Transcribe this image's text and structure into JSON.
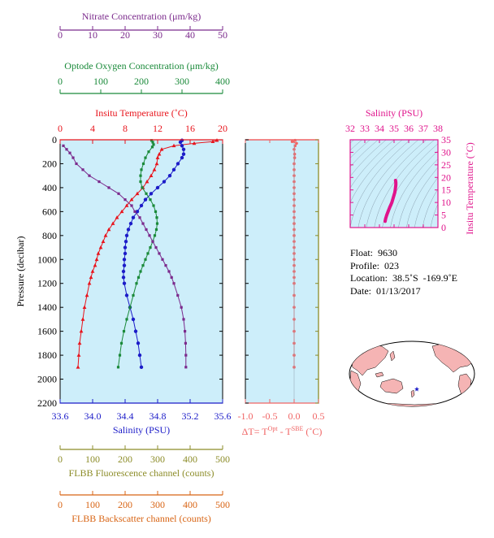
{
  "chart_data": [
    {
      "type": "line",
      "panel": "profile",
      "ylabel": "Pressure (decibar)",
      "ylim": [
        2200,
        0
      ],
      "yticks": [
        "0",
        "200",
        "400",
        "600",
        "800",
        "1000",
        "1200",
        "1400",
        "1600",
        "1800",
        "2000",
        "2200"
      ],
      "axes": {
        "nitrate": {
          "label": "Nitrate Concentration (μm/kg)",
          "range": [
            0,
            50
          ],
          "ticks": [
            "0",
            "10",
            "20",
            "30",
            "40",
            "50"
          ],
          "color": "#7b2a8c"
        },
        "oxygen": {
          "label": "Optode Oxygen Concentration (μm/kg)",
          "range": [
            0,
            400
          ],
          "ticks": [
            "0",
            "100",
            "200",
            "300",
            "400"
          ],
          "color": "#1a8a3a"
        },
        "temperature": {
          "label": "Insitu Temperature (˚C)",
          "range": [
            0,
            20
          ],
          "ticks": [
            "0",
            "4",
            "8",
            "12",
            "16",
            "20"
          ],
          "color": "#e8141c"
        },
        "salinity": {
          "label": "Salinity (PSU)",
          "range": [
            33.6,
            35.6
          ],
          "ticks": [
            "33.6",
            "34.0",
            "34.4",
            "34.8",
            "35.2",
            "35.6"
          ],
          "color": "#1c1cc8"
        },
        "fluorescence": {
          "label": "FLBB Fluorescence channel (counts)",
          "range": [
            0,
            500
          ],
          "ticks": [
            "0",
            "100",
            "200",
            "300",
            "400",
            "500"
          ],
          "color": "#8c8c28"
        },
        "backscatter": {
          "label": "FLBB Backscatter channel (counts)",
          "range": [
            0,
            500
          ],
          "ticks": [
            "0",
            "100",
            "200",
            "300",
            "400",
            "500"
          ],
          "color": "#d86414"
        }
      },
      "series": [
        {
          "key": "temperature",
          "color": "#e8141c",
          "marker": "triangle",
          "points": [
            [
              19.3,
              5
            ],
            [
              18.8,
              15
            ],
            [
              16.5,
              30
            ],
            [
              14.0,
              50
            ],
            [
              12.5,
              80
            ],
            [
              12.2,
              120
            ],
            [
              12.0,
              150
            ],
            [
              11.9,
              200
            ],
            [
              11.6,
              250
            ],
            [
              11.2,
              300
            ],
            [
              10.7,
              350
            ],
            [
              10.2,
              400
            ],
            [
              9.5,
              450
            ],
            [
              8.8,
              500
            ],
            [
              8.2,
              550
            ],
            [
              7.6,
              600
            ],
            [
              7.0,
              650
            ],
            [
              6.5,
              700
            ],
            [
              6.0,
              750
            ],
            [
              5.6,
              800
            ],
            [
              5.3,
              850
            ],
            [
              5.0,
              900
            ],
            [
              4.7,
              950
            ],
            [
              4.5,
              1000
            ],
            [
              4.3,
              1050
            ],
            [
              4.0,
              1100
            ],
            [
              3.8,
              1150
            ],
            [
              3.6,
              1200
            ],
            [
              3.3,
              1300
            ],
            [
              3.0,
              1400
            ],
            [
              2.8,
              1500
            ],
            [
              2.6,
              1600
            ],
            [
              2.4,
              1700
            ],
            [
              2.3,
              1800
            ],
            [
              2.2,
              1900
            ]
          ]
        },
        {
          "key": "salinity",
          "color": "#1c1cc8",
          "marker": "circle",
          "points": [
            [
              35.1,
              5
            ],
            [
              35.08,
              20
            ],
            [
              35.1,
              50
            ],
            [
              35.12,
              80
            ],
            [
              35.12,
              120
            ],
            [
              35.1,
              150
            ],
            [
              35.05,
              200
            ],
            [
              35.0,
              250
            ],
            [
              34.95,
              300
            ],
            [
              34.88,
              350
            ],
            [
              34.8,
              400
            ],
            [
              34.72,
              450
            ],
            [
              34.65,
              500
            ],
            [
              34.6,
              550
            ],
            [
              34.55,
              600
            ],
            [
              34.5,
              650
            ],
            [
              34.47,
              700
            ],
            [
              34.44,
              750
            ],
            [
              34.42,
              800
            ],
            [
              34.41,
              850
            ],
            [
              34.4,
              900
            ],
            [
              34.4,
              950
            ],
            [
              34.39,
              1000
            ],
            [
              34.39,
              1050
            ],
            [
              34.38,
              1100
            ],
            [
              34.38,
              1150
            ],
            [
              34.39,
              1200
            ],
            [
              34.42,
              1300
            ],
            [
              34.46,
              1400
            ],
            [
              34.5,
              1500
            ],
            [
              34.53,
              1600
            ],
            [
              34.56,
              1700
            ],
            [
              34.58,
              1800
            ],
            [
              34.6,
              1900
            ]
          ]
        },
        {
          "key": "oxygen",
          "color": "#1a8a3a",
          "marker": "square",
          "points": [
            [
              225,
              5
            ],
            [
              228,
              20
            ],
            [
              230,
              40
            ],
            [
              227,
              60
            ],
            [
              218,
              100
            ],
            [
              210,
              150
            ],
            [
              205,
              200
            ],
            [
              200,
              250
            ],
            [
              198,
              300
            ],
            [
              198,
              350
            ],
            [
              202,
              400
            ],
            [
              212,
              450
            ],
            [
              222,
              500
            ],
            [
              230,
              550
            ],
            [
              235,
              600
            ],
            [
              238,
              650
            ],
            [
              239,
              700
            ],
            [
              237,
              750
            ],
            [
              233,
              800
            ],
            [
              228,
              850
            ],
            [
              222,
              900
            ],
            [
              216,
              950
            ],
            [
              210,
              1000
            ],
            [
              204,
              1050
            ],
            [
              198,
              1100
            ],
            [
              193,
              1150
            ],
            [
              188,
              1200
            ],
            [
              180,
              1300
            ],
            [
              172,
              1400
            ],
            [
              164,
              1500
            ],
            [
              157,
              1600
            ],
            [
              151,
              1700
            ],
            [
              147,
              1800
            ],
            [
              143,
              1900
            ]
          ]
        },
        {
          "key": "nitrate",
          "color": "#7b2a8c",
          "marker": "square",
          "points": [
            [
              1,
              50
            ],
            [
              2,
              80
            ],
            [
              3,
              110
            ],
            [
              4,
              150
            ],
            [
              5,
              200
            ],
            [
              7,
              250
            ],
            [
              9,
              300
            ],
            [
              12,
              350
            ],
            [
              15,
              400
            ],
            [
              18,
              450
            ],
            [
              20,
              500
            ],
            [
              22,
              550
            ],
            [
              23,
              600
            ],
            [
              24.5,
              650
            ],
            [
              25.5,
              700
            ],
            [
              26.5,
              750
            ],
            [
              27.5,
              800
            ],
            [
              28.5,
              850
            ],
            [
              29.5,
              900
            ],
            [
              30.5,
              950
            ],
            [
              31.5,
              1000
            ],
            [
              32.5,
              1050
            ],
            [
              33.5,
              1100
            ],
            [
              34.3,
              1150
            ],
            [
              35,
              1200
            ],
            [
              36.2,
              1300
            ],
            [
              37.3,
              1400
            ],
            [
              38,
              1500
            ],
            [
              38.4,
              1600
            ],
            [
              38.6,
              1700
            ],
            [
              38.7,
              1800
            ],
            [
              38.7,
              1900
            ]
          ]
        }
      ]
    },
    {
      "type": "scatter",
      "panel": "delta-t",
      "xlabel_main": "ΔT= T",
      "xlabel_sup1": "Opt",
      "xlabel_mid": " - T",
      "xlabel_sup2": "SBE",
      "xlabel_end": " (˚C)",
      "xlim": [
        -1.0,
        0.5
      ],
      "xticks": [
        "-1.0",
        "-0.5",
        "0.0",
        "0.5"
      ],
      "ylim": [
        2200,
        0
      ],
      "color": "#f06464",
      "points": [
        [
          0.02,
          5
        ],
        [
          -0.04,
          15
        ],
        [
          0.05,
          30
        ],
        [
          0.02,
          50
        ],
        [
          0.0,
          80
        ],
        [
          0.01,
          120
        ],
        [
          0.01,
          150
        ],
        [
          0.0,
          200
        ],
        [
          0.0,
          250
        ],
        [
          0.0,
          300
        ],
        [
          0.0,
          350
        ],
        [
          0.0,
          400
        ],
        [
          0.0,
          450
        ],
        [
          0.0,
          500
        ],
        [
          0.0,
          550
        ],
        [
          0.0,
          600
        ],
        [
          0.0,
          650
        ],
        [
          0.0,
          700
        ],
        [
          0.0,
          750
        ],
        [
          0.0,
          800
        ],
        [
          0.0,
          850
        ],
        [
          0.0,
          900
        ],
        [
          0.0,
          950
        ],
        [
          0.0,
          1000
        ],
        [
          0.0,
          1050
        ],
        [
          0.0,
          1100
        ],
        [
          0.0,
          1150
        ],
        [
          0.0,
          1200
        ],
        [
          0.0,
          1300
        ],
        [
          0.0,
          1400
        ],
        [
          0.0,
          1500
        ],
        [
          0.0,
          1600
        ],
        [
          0.0,
          1700
        ],
        [
          0.0,
          1800
        ],
        [
          0.0,
          1900
        ]
      ]
    },
    {
      "type": "scatter",
      "panel": "ts-diagram",
      "xlabel": "Salinity (PSU)",
      "ylabel": "Insitu Temperature (˚C)",
      "xlim": [
        32,
        38
      ],
      "xticks": [
        "32",
        "33",
        "34",
        "35",
        "36",
        "37",
        "38"
      ],
      "ylim": [
        0,
        35
      ],
      "yticks": [
        "0",
        "5",
        "10",
        "15",
        "20",
        "25",
        "30",
        "35"
      ],
      "color": "#e0148c",
      "points": [
        [
          34.39,
          2.5
        ],
        [
          34.42,
          3.5
        ],
        [
          34.5,
          5
        ],
        [
          34.6,
          6.5
        ],
        [
          34.7,
          8
        ],
        [
          34.78,
          9
        ],
        [
          34.85,
          10
        ],
        [
          34.9,
          11
        ],
        [
          34.95,
          12
        ],
        [
          35.0,
          13
        ],
        [
          35.05,
          14
        ],
        [
          35.08,
          15
        ],
        [
          35.1,
          16
        ],
        [
          35.12,
          17
        ],
        [
          35.12,
          18
        ],
        [
          35.1,
          18.8
        ]
      ]
    }
  ],
  "float_info": {
    "float": "Float:  9630",
    "profile": "Profile:  023",
    "location": "Location:  38.5˚S  -169.9˚E",
    "date": "Date:  01/13/2017"
  },
  "map": {
    "marker_lat": -38.5,
    "marker_lon": -169.9,
    "land_color": "#f5b4b4",
    "marker_color": "#1c1cc8"
  }
}
